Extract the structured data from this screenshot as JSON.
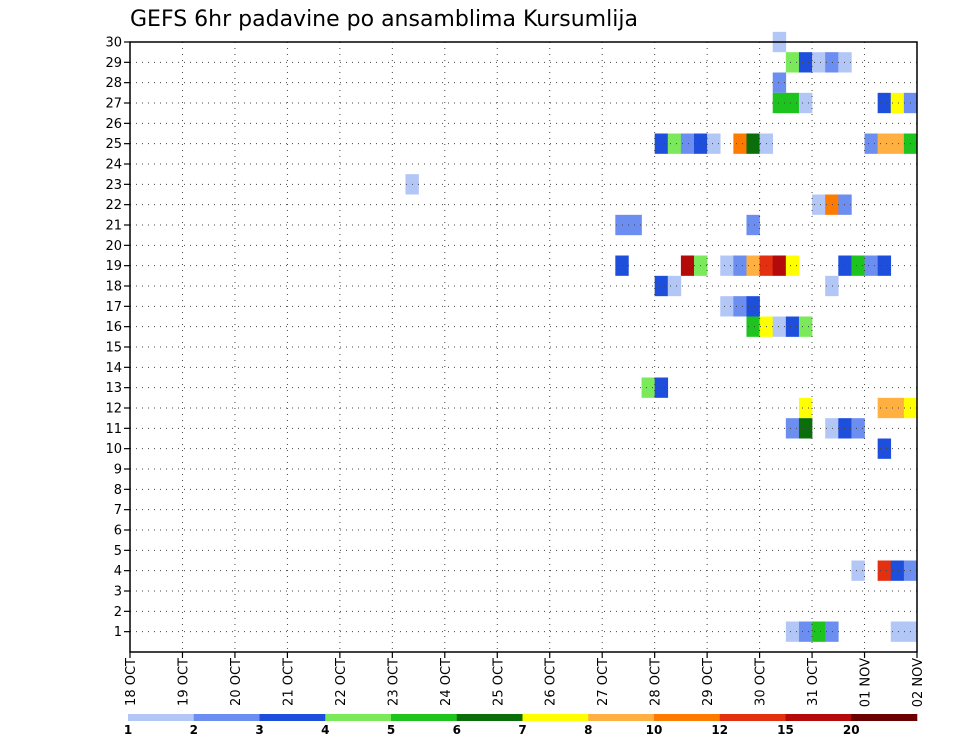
{
  "chart_data": {
    "type": "heatmap",
    "title": "GEFS 6hr padavine po ansamblima Kursumlija",
    "xlabel": "",
    "ylabel": "",
    "x_tick_labels": [
      "18 OCT",
      "19 OCT",
      "20 OCT",
      "21 OCT",
      "22 OCT",
      "23 OCT",
      "24 OCT",
      "25 OCT",
      "26 OCT",
      "27 OCT",
      "28 OCT",
      "29 OCT",
      "30 OCT",
      "31 OCT",
      "01 NOV",
      "02 NOV"
    ],
    "xlim_days": [
      0,
      15
    ],
    "time_step_hours": 6,
    "y_ticks": [
      1,
      2,
      3,
      4,
      5,
      6,
      7,
      8,
      9,
      10,
      11,
      12,
      13,
      14,
      15,
      16,
      17,
      18,
      19,
      20,
      21,
      22,
      23,
      24,
      25,
      26,
      27,
      28,
      29,
      30
    ],
    "ylim": [
      0,
      30
    ],
    "grid": true,
    "colorbar": {
      "labels": [
        "1",
        "2",
        "3",
        "4",
        "5",
        "6",
        "7",
        "8",
        "10",
        "12",
        "15",
        "20"
      ],
      "colors": [
        "#b3c7f7",
        "#6b8ef0",
        "#1e4fdc",
        "#7aea5a",
        "#1ec41e",
        "#0a6e0a",
        "#ffff00",
        "#ffb040",
        "#ff7a00",
        "#e23010",
        "#b40a0a",
        "#6a0000"
      ]
    },
    "cells": [
      {
        "member": 30,
        "day": 12.25,
        "level": 1
      },
      {
        "member": 29,
        "day": 12.5,
        "level": 4
      },
      {
        "member": 29,
        "day": 12.75,
        "level": 3
      },
      {
        "member": 29,
        "day": 13.0,
        "level": 1
      },
      {
        "member": 29,
        "day": 13.25,
        "level": 2
      },
      {
        "member": 29,
        "day": 13.5,
        "level": 1
      },
      {
        "member": 28,
        "day": 12.25,
        "level": 2
      },
      {
        "member": 27,
        "day": 12.25,
        "level": 5
      },
      {
        "member": 27,
        "day": 12.5,
        "level": 5
      },
      {
        "member": 27,
        "day": 12.75,
        "level": 1
      },
      {
        "member": 27,
        "day": 14.25,
        "level": 3
      },
      {
        "member": 27,
        "day": 14.5,
        "level": 7
      },
      {
        "member": 27,
        "day": 14.75,
        "level": 2
      },
      {
        "member": 25,
        "day": 10.0,
        "level": 3
      },
      {
        "member": 25,
        "day": 10.25,
        "level": 4
      },
      {
        "member": 25,
        "day": 10.5,
        "level": 2
      },
      {
        "member": 25,
        "day": 10.75,
        "level": 3
      },
      {
        "member": 25,
        "day": 11.0,
        "level": 1
      },
      {
        "member": 25,
        "day": 11.5,
        "level": 9
      },
      {
        "member": 25,
        "day": 11.75,
        "level": 6
      },
      {
        "member": 25,
        "day": 12.0,
        "level": 1
      },
      {
        "member": 25,
        "day": 14.0,
        "level": 2
      },
      {
        "member": 25,
        "day": 14.25,
        "level": 8
      },
      {
        "member": 25,
        "day": 14.5,
        "level": 8
      },
      {
        "member": 25,
        "day": 14.75,
        "level": 5
      },
      {
        "member": 23,
        "day": 5.25,
        "level": 1
      },
      {
        "member": 22,
        "day": 13.0,
        "level": 1
      },
      {
        "member": 22,
        "day": 13.25,
        "level": 9
      },
      {
        "member": 22,
        "day": 13.5,
        "level": 2
      },
      {
        "member": 21,
        "day": 9.25,
        "level": 2
      },
      {
        "member": 21,
        "day": 9.5,
        "level": 2
      },
      {
        "member": 21,
        "day": 11.75,
        "level": 2
      },
      {
        "member": 19,
        "day": 9.25,
        "level": 3
      },
      {
        "member": 19,
        "day": 10.5,
        "level": 11
      },
      {
        "member": 19,
        "day": 10.75,
        "level": 4
      },
      {
        "member": 19,
        "day": 11.25,
        "level": 1
      },
      {
        "member": 19,
        "day": 11.5,
        "level": 2
      },
      {
        "member": 19,
        "day": 11.75,
        "level": 8
      },
      {
        "member": 19,
        "day": 12.0,
        "level": 10
      },
      {
        "member": 19,
        "day": 12.25,
        "level": 11
      },
      {
        "member": 19,
        "day": 12.5,
        "level": 7
      },
      {
        "member": 19,
        "day": 13.5,
        "level": 3
      },
      {
        "member": 19,
        "day": 13.75,
        "level": 5
      },
      {
        "member": 19,
        "day": 14.0,
        "level": 2
      },
      {
        "member": 19,
        "day": 14.25,
        "level": 3
      },
      {
        "member": 18,
        "day": 10.0,
        "level": 3
      },
      {
        "member": 18,
        "day": 10.25,
        "level": 1
      },
      {
        "member": 18,
        "day": 13.25,
        "level": 1
      },
      {
        "member": 17,
        "day": 11.25,
        "level": 1
      },
      {
        "member": 17,
        "day": 11.5,
        "level": 2
      },
      {
        "member": 17,
        "day": 11.75,
        "level": 3
      },
      {
        "member": 16,
        "day": 11.75,
        "level": 5
      },
      {
        "member": 16,
        "day": 12.0,
        "level": 7
      },
      {
        "member": 16,
        "day": 12.25,
        "level": 1
      },
      {
        "member": 16,
        "day": 12.5,
        "level": 3
      },
      {
        "member": 16,
        "day": 12.75,
        "level": 4
      },
      {
        "member": 13,
        "day": 9.75,
        "level": 4
      },
      {
        "member": 13,
        "day": 10.0,
        "level": 3
      },
      {
        "member": 12,
        "day": 12.75,
        "level": 7
      },
      {
        "member": 12,
        "day": 14.25,
        "level": 8
      },
      {
        "member": 12,
        "day": 14.5,
        "level": 8
      },
      {
        "member": 12,
        "day": 14.75,
        "level": 7
      },
      {
        "member": 11,
        "day": 12.5,
        "level": 2
      },
      {
        "member": 11,
        "day": 12.75,
        "level": 6
      },
      {
        "member": 11,
        "day": 13.25,
        "level": 1
      },
      {
        "member": 11,
        "day": 13.5,
        "level": 3
      },
      {
        "member": 11,
        "day": 13.75,
        "level": 2
      },
      {
        "member": 10,
        "day": 14.25,
        "level": 3
      },
      {
        "member": 4,
        "day": 13.75,
        "level": 1
      },
      {
        "member": 4,
        "day": 14.25,
        "level": 10
      },
      {
        "member": 4,
        "day": 14.5,
        "level": 3
      },
      {
        "member": 4,
        "day": 14.75,
        "level": 2
      },
      {
        "member": 1,
        "day": 12.5,
        "level": 1
      },
      {
        "member": 1,
        "day": 12.75,
        "level": 2
      },
      {
        "member": 1,
        "day": 13.0,
        "level": 5
      },
      {
        "member": 1,
        "day": 13.25,
        "level": 2
      },
      {
        "member": 1,
        "day": 14.5,
        "level": 1
      },
      {
        "member": 1,
        "day": 14.75,
        "level": 1
      }
    ]
  }
}
